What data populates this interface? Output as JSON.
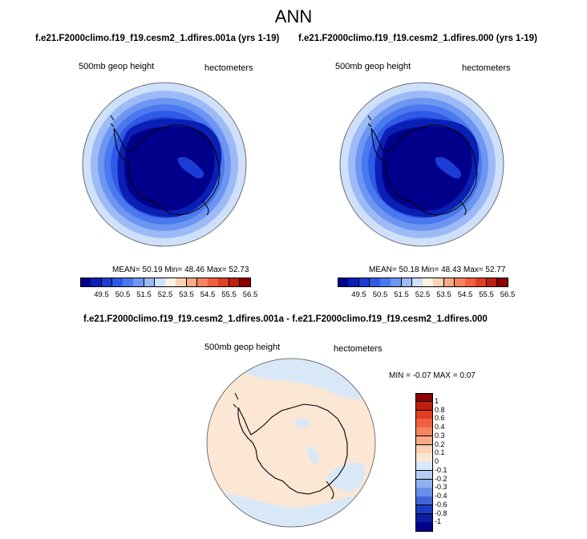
{
  "figure": {
    "title": "ANN"
  },
  "panels": [
    {
      "title": "f.e21.F2000climo.f19_f19.cesm2_1.dfires.001a (yrs 1-19)",
      "field_label": "500mb geop height",
      "units": "hectometers",
      "stats": {
        "mean_label": "MEAN=",
        "mean": "50.19",
        "min_label": "Min=",
        "min": "48.46",
        "max_label": "Max=",
        "max": "52.73"
      },
      "colorbar_ticks": [
        "49.5",
        "50.5",
        "51.5",
        "52.5",
        "53.5",
        "54.5",
        "55.5",
        "56.5"
      ]
    },
    {
      "title": "f.e21.F2000climo.f19_f19.cesm2_1.dfires.000 (yrs 1-19)",
      "field_label": "500mb geop height",
      "units": "hectometers",
      "stats": {
        "mean_label": "MEAN=",
        "mean": "50.18",
        "min_label": "Min=",
        "min": "48.43",
        "max_label": "Max=",
        "max": "52.77"
      },
      "colorbar_ticks": [
        "49.5",
        "50.5",
        "51.5",
        "52.5",
        "53.5",
        "54.5",
        "55.5",
        "56.5"
      ]
    }
  ],
  "diff_panel": {
    "title": "f.e21.F2000climo.f19_f19.cesm2_1.dfires.001a - f.e21.F2000climo.f19_f19.cesm2_1.dfires.000",
    "field_label": "500mb geop height",
    "units": "hectometers",
    "minmax": "MIN = -0.07 MAX = 0.07",
    "colorbar_ticks": [
      "1",
      "0.8",
      "0.6",
      "0.4",
      "0.3",
      "0.2",
      "0.1",
      "0",
      "-0.1",
      "-0.2",
      "-0.3",
      "-0.4",
      "-0.6",
      "-0.8",
      "-1"
    ]
  },
  "colors": {
    "abs_colorbar": [
      "#00008b",
      "#0a1fb4",
      "#1c3cd6",
      "#2f5ae6",
      "#4a78ee",
      "#6d96f2",
      "#9cbaf5",
      "#cfe0fa",
      "#fff2e2",
      "#fcd1b4",
      "#f9a985",
      "#f68460",
      "#f0603e",
      "#e43d22",
      "#c01f10",
      "#8b0000"
    ],
    "diff_colorbar": [
      "#8b0000",
      "#c01f10",
      "#e43d22",
      "#f0603e",
      "#f68460",
      "#f9a985",
      "#fcd1b4",
      "#fbe7d6",
      "#d6e8fa",
      "#b4cef4",
      "#8eb0ee",
      "#6890e8",
      "#4066d9",
      "#1c3cc4",
      "#0a1fa0",
      "#00008b"
    ],
    "map_rings": [
      "#cfe0fa",
      "#9cbaf5",
      "#6d96f2",
      "#4a78ee",
      "#2f5ae6",
      "#1c3cd6",
      "#0a1fb4",
      "#00008b"
    ],
    "diff_positive": "#fce6d4",
    "diff_negative": "#d9e8f7"
  }
}
